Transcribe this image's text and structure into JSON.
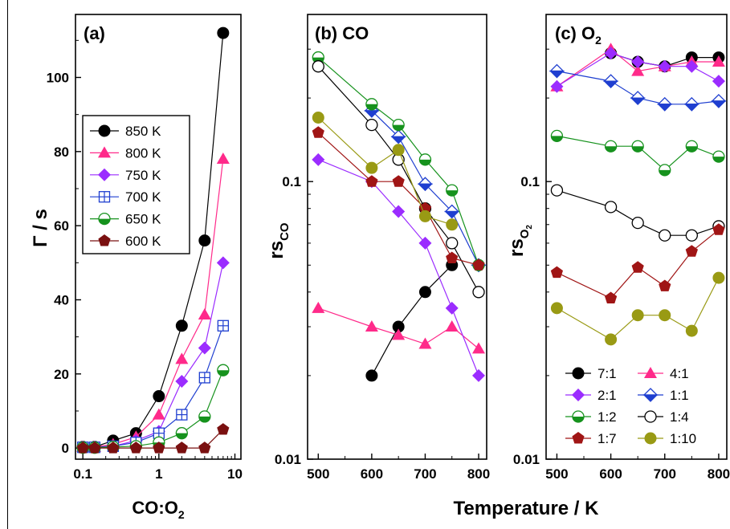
{
  "colors": {
    "850 K": "#000000",
    "800 K": "#ff2a8a",
    "750 K": "#9b2cff",
    "700 K": "#1f3fd0",
    "650 K": "#16921d",
    "600 K": "#7a1010",
    "7:1": "#000000",
    "4:1": "#ff2a8a",
    "2:1": "#9b2cff",
    "1:1": "#1f3fd0",
    "1:2": "#16921d",
    "1:4": "#000000",
    "1:7": "#a01515",
    "1:10": "#999a14"
  },
  "chart_data": [
    {
      "type": "line",
      "panel_label": "(a)",
      "xlabel": "CO:O",
      "xlabel_sub": "2",
      "ylabel": "Γ / s",
      "xscale": "log",
      "xlim": [
        0.08,
        12
      ],
      "ylim": [
        -3,
        117
      ],
      "x_ticks": [
        0.1,
        1,
        10
      ],
      "x_tick_labels": [
        "0.1",
        "1",
        "10"
      ],
      "y_ticks": [
        0,
        20,
        40,
        60,
        80,
        100
      ],
      "y_tick_labels": [
        "0",
        "20",
        "40",
        "60",
        "80",
        "100"
      ],
      "x": [
        0.1,
        0.143,
        0.25,
        0.5,
        1,
        2,
        4,
        7
      ],
      "legend_placement": "left-middle",
      "series": [
        {
          "name": "850 K",
          "marker": "circle",
          "values": [
            0.3,
            0.3,
            2,
            4,
            14,
            33,
            56,
            112
          ]
        },
        {
          "name": "800 K",
          "marker": "triangle",
          "values": [
            0.3,
            0.3,
            1,
            3,
            9,
            24,
            36,
            78
          ]
        },
        {
          "name": "750 K",
          "marker": "diamond",
          "values": [
            0.2,
            0.2,
            0.5,
            2,
            4.5,
            18,
            27,
            50
          ]
        },
        {
          "name": "700 K",
          "marker": "squareplus",
          "values": [
            0.2,
            0.2,
            0.5,
            1.5,
            4,
            9,
            19,
            33
          ]
        },
        {
          "name": "650 K",
          "marker": "halfcircle",
          "values": [
            0.1,
            0.1,
            0.3,
            0.5,
            1.5,
            4,
            8.5,
            21
          ]
        },
        {
          "name": "600 K",
          "marker": "pentagon",
          "values": [
            0,
            0,
            0,
            0,
            0,
            0,
            0,
            5
          ]
        }
      ]
    },
    {
      "type": "line",
      "panel_label": "(b) CO",
      "ylabel": "rs",
      "ylabel_sub": "CO",
      "yscale": "log",
      "xlim": [
        480,
        815
      ],
      "ylim": [
        0.01,
        0.4
      ],
      "x_ticks": [
        500,
        600,
        700,
        800
      ],
      "x_tick_labels": [
        "500",
        "600",
        "700",
        "800"
      ],
      "y_ticks": [
        0.01,
        0.1
      ],
      "y_tick_labels": [
        "0.01",
        "0.1"
      ],
      "x": [
        500,
        600,
        650,
        700,
        750,
        800
      ],
      "series": [
        {
          "ratio": "7:1",
          "marker": "circle",
          "values": [
            null,
            0.02,
            0.03,
            0.04,
            0.05,
            null
          ]
        },
        {
          "ratio": "4:1",
          "marker": "triangle",
          "values": [
            0.035,
            0.03,
            0.028,
            0.026,
            0.03,
            0.025
          ]
        },
        {
          "ratio": "2:1",
          "marker": "diamond",
          "values": [
            0.12,
            0.1,
            0.078,
            0.06,
            0.035,
            0.02
          ]
        },
        {
          "ratio": "1:1",
          "marker": "diamondhalf",
          "values": [
            null,
            0.18,
            0.145,
            0.098,
            0.078,
            0.05
          ]
        },
        {
          "ratio": "1:2",
          "marker": "halfcircle",
          "values": [
            0.28,
            0.19,
            0.16,
            0.12,
            0.093,
            0.05
          ]
        },
        {
          "ratio": "1:4",
          "marker": "opencircle",
          "values": [
            0.26,
            0.16,
            0.12,
            0.08,
            0.06,
            0.04
          ]
        },
        {
          "ratio": "1:7",
          "marker": "pentagon",
          "values": [
            0.15,
            0.1,
            0.1,
            0.08,
            0.053,
            0.05
          ]
        },
        {
          "ratio": "1:10",
          "marker": "filledcircle",
          "values": [
            0.17,
            0.112,
            0.13,
            0.075,
            0.07,
            null
          ]
        }
      ]
    },
    {
      "type": "line",
      "panel_label": "(c) O",
      "panel_label_sub": "2",
      "ylabel": "rs",
      "ylabel_sub": "O",
      "ylabel_subsub": "2",
      "yscale": "log",
      "xlim": [
        480,
        815
      ],
      "ylim": [
        0.01,
        0.4
      ],
      "x_ticks": [
        500,
        600,
        700,
        800
      ],
      "x_tick_labels": [
        "500",
        "600",
        "700",
        "800"
      ],
      "y_ticks": [
        0.01,
        0.1
      ],
      "y_tick_labels": [
        "0.01",
        "0.1"
      ],
      "x": [
        500,
        600,
        650,
        700,
        750,
        800
      ],
      "legend_placement": "bottom",
      "series": [
        {
          "name": "7:1",
          "marker": "circle",
          "values": [
            null,
            0.29,
            0.27,
            0.26,
            0.28,
            0.28
          ]
        },
        {
          "name": "4:1",
          "marker": "triangle",
          "values": [
            0.22,
            0.3,
            0.25,
            0.26,
            0.27,
            0.27
          ]
        },
        {
          "name": "2:1",
          "marker": "diamond",
          "values": [
            0.22,
            0.29,
            0.27,
            0.26,
            0.26,
            0.23
          ]
        },
        {
          "name": "1:1",
          "marker": "diamondhalf",
          "values": [
            0.25,
            0.23,
            0.2,
            0.19,
            0.19,
            0.195
          ]
        },
        {
          "name": "1:2",
          "marker": "halfcircle",
          "values": [
            0.146,
            0.134,
            0.134,
            0.11,
            0.134,
            0.123
          ]
        },
        {
          "name": "1:4",
          "marker": "opencircle",
          "values": [
            0.093,
            0.081,
            0.071,
            0.064,
            0.064,
            0.069
          ]
        },
        {
          "name": "1:7",
          "marker": "pentagon",
          "values": [
            0.047,
            0.038,
            0.049,
            0.042,
            0.056,
            0.067
          ]
        },
        {
          "name": "1:10",
          "marker": "filledcircle",
          "values": [
            0.035,
            0.027,
            0.033,
            0.033,
            0.029,
            0.045
          ]
        }
      ]
    }
  ],
  "shared_xlabel": "Temperature / K"
}
